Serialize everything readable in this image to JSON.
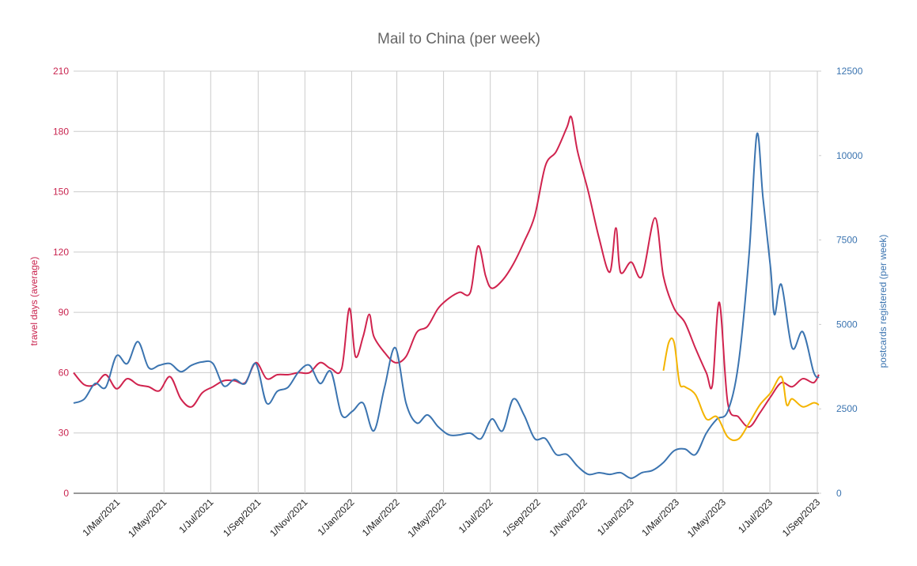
{
  "chart_data": {
    "type": "line",
    "title": "Mail to China (per week)",
    "ylabel": "travel days (average)",
    "y2label": "postcards registered (per week)",
    "xlim": [
      "2021-01-03",
      "2023-09-03"
    ],
    "xticks": [
      {
        "value": "2021-03-01",
        "label": "1/Mar/2021"
      },
      {
        "value": "2021-05-01",
        "label": "1/May/2021"
      },
      {
        "value": "2021-07-01",
        "label": "1/Jul/2021"
      },
      {
        "value": "2021-09-01",
        "label": "1/Sep/2021"
      },
      {
        "value": "2021-11-01",
        "label": "1/Nov/2021"
      },
      {
        "value": "2022-01-01",
        "label": "1/Jan/2022"
      },
      {
        "value": "2022-03-01",
        "label": "1/Mar/2022"
      },
      {
        "value": "2022-05-01",
        "label": "1/May/2022"
      },
      {
        "value": "2022-07-01",
        "label": "1/Jul/2022"
      },
      {
        "value": "2022-09-01",
        "label": "1/Sep/2022"
      },
      {
        "value": "2022-11-01",
        "label": "1/Nov/2022"
      },
      {
        "value": "2023-01-01",
        "label": "1/Jan/2023"
      },
      {
        "value": "2023-03-01",
        "label": "1/Mar/2023"
      },
      {
        "value": "2023-05-01",
        "label": "1/May/2023"
      },
      {
        "value": "2023-07-01",
        "label": "1/Jul/2023"
      },
      {
        "value": "2023-09-01",
        "label": "1/Sep/2023"
      }
    ],
    "ylim": [
      0,
      210
    ],
    "yticks": [
      0,
      30,
      60,
      90,
      120,
      150,
      180,
      210
    ],
    "y2lim": [
      0,
      12500
    ],
    "y2ticks": [
      0,
      2500,
      5000,
      7500,
      10000,
      12500
    ],
    "grid": true,
    "ycolor": "#c9244f",
    "y2color": "#3b74b0",
    "series": [
      {
        "color": "#d0234e",
        "x": [
          "2021-01-03",
          "2021-01-17",
          "2021-01-31",
          "2021-02-14",
          "2021-02-28",
          "2021-03-14",
          "2021-03-28",
          "2021-04-11",
          "2021-04-25",
          "2021-05-09",
          "2021-05-23",
          "2021-06-06",
          "2021-06-20",
          "2021-07-04",
          "2021-07-18",
          "2021-08-01",
          "2021-08-15",
          "2021-08-29",
          "2021-09-12",
          "2021-09-26",
          "2021-10-10",
          "2021-10-24",
          "2021-11-07",
          "2021-11-21",
          "2021-12-05",
          "2021-12-19",
          "2021-12-29",
          "2022-01-06",
          "2022-01-16",
          "2022-01-24",
          "2022-01-30",
          "2022-02-13",
          "2022-02-27",
          "2022-03-13",
          "2022-03-27",
          "2022-04-10",
          "2022-04-24",
          "2022-05-08",
          "2022-05-22",
          "2022-06-05",
          "2022-06-15",
          "2022-06-25",
          "2022-07-03",
          "2022-07-17",
          "2022-07-31",
          "2022-08-14",
          "2022-08-28",
          "2022-09-11",
          "2022-09-25",
          "2022-10-09",
          "2022-10-15",
          "2022-10-23",
          "2022-11-06",
          "2022-11-20",
          "2022-12-04",
          "2022-12-12",
          "2022-12-18",
          "2023-01-01",
          "2023-01-15",
          "2023-02-01",
          "2023-02-12",
          "2023-02-26",
          "2023-03-12",
          "2023-03-26",
          "2023-04-09",
          "2023-04-17",
          "2023-04-26",
          "2023-05-07",
          "2023-05-21",
          "2023-06-04",
          "2023-06-18",
          "2023-07-02",
          "2023-07-16",
          "2023-07-30",
          "2023-08-13",
          "2023-08-27",
          "2023-09-03"
        ],
        "values": [
          60,
          54,
          54,
          59,
          52,
          57,
          54,
          53,
          51,
          58,
          47,
          43,
          50,
          53,
          56,
          56,
          55,
          65,
          57,
          59,
          59,
          60,
          60,
          65,
          62,
          62,
          92,
          68,
          78,
          89,
          78,
          70,
          65,
          68,
          80,
          83,
          92,
          97,
          100,
          100,
          123,
          108,
          102,
          106,
          114,
          125,
          138,
          163,
          170,
          182,
          187,
          170,
          150,
          127,
          110,
          132,
          110,
          115,
          108,
          137,
          108,
          92,
          85,
          72,
          60,
          54,
          95,
          45,
          38,
          33,
          40,
          48,
          55,
          53,
          57,
          55,
          59
        ]
      },
      {
        "color": "#3b74b0",
        "axis": "y2",
        "x": [
          "2021-01-03",
          "2021-01-17",
          "2021-01-31",
          "2021-02-14",
          "2021-02-28",
          "2021-03-14",
          "2021-03-28",
          "2021-04-11",
          "2021-04-25",
          "2021-05-09",
          "2021-05-23",
          "2021-06-06",
          "2021-06-20",
          "2021-07-04",
          "2021-07-18",
          "2021-08-01",
          "2021-08-15",
          "2021-08-29",
          "2021-09-12",
          "2021-09-26",
          "2021-10-10",
          "2021-10-24",
          "2021-11-07",
          "2021-11-21",
          "2021-12-05",
          "2021-12-19",
          "2022-01-02",
          "2022-01-16",
          "2022-01-30",
          "2022-02-13",
          "2022-02-27",
          "2022-03-13",
          "2022-03-27",
          "2022-04-10",
          "2022-04-24",
          "2022-05-08",
          "2022-05-22",
          "2022-06-05",
          "2022-06-19",
          "2022-07-03",
          "2022-07-17",
          "2022-07-31",
          "2022-08-14",
          "2022-08-28",
          "2022-09-11",
          "2022-09-25",
          "2022-10-09",
          "2022-10-23",
          "2022-11-06",
          "2022-11-20",
          "2022-12-04",
          "2022-12-18",
          "2023-01-01",
          "2023-01-15",
          "2023-01-29",
          "2023-02-12",
          "2023-02-26",
          "2023-03-12",
          "2023-03-26",
          "2023-04-09",
          "2023-04-23",
          "2023-05-07",
          "2023-05-21",
          "2023-06-04",
          "2023-06-14",
          "2023-06-22",
          "2023-07-02",
          "2023-07-07",
          "2023-07-16",
          "2023-07-30",
          "2023-08-13",
          "2023-08-27",
          "2023-09-03"
        ],
        "values": [
          2670,
          2790,
          3250,
          3140,
          4070,
          3840,
          4490,
          3720,
          3790,
          3840,
          3600,
          3790,
          3890,
          3840,
          3180,
          3370,
          3250,
          3840,
          2670,
          3020,
          3140,
          3600,
          3790,
          3250,
          3600,
          2320,
          2430,
          2670,
          1850,
          3140,
          4310,
          2670,
          2080,
          2320,
          1970,
          1730,
          1730,
          1780,
          1620,
          2200,
          1850,
          2790,
          2320,
          1620,
          1620,
          1150,
          1150,
          800,
          560,
          610,
          560,
          610,
          445,
          610,
          680,
          910,
          1260,
          1310,
          1150,
          1780,
          2200,
          2430,
          3840,
          7110,
          10630,
          8750,
          6650,
          5290,
          6180,
          4310,
          4780,
          3600,
          3420
        ]
      },
      {
        "color": "#f4b400",
        "x": [
          "2023-02-12",
          "2023-02-19",
          "2023-02-26",
          "2023-03-05",
          "2023-03-12",
          "2023-03-26",
          "2023-04-09",
          "2023-04-23",
          "2023-05-07",
          "2023-05-21",
          "2023-06-04",
          "2023-06-18",
          "2023-07-02",
          "2023-07-16",
          "2023-07-23",
          "2023-07-30",
          "2023-08-13",
          "2023-08-27",
          "2023-09-03"
        ],
        "values": [
          61,
          75,
          75,
          55,
          53,
          49,
          37,
          38,
          28,
          27,
          35,
          44,
          50,
          58,
          44,
          47,
          43,
          45,
          44
        ]
      }
    ]
  }
}
